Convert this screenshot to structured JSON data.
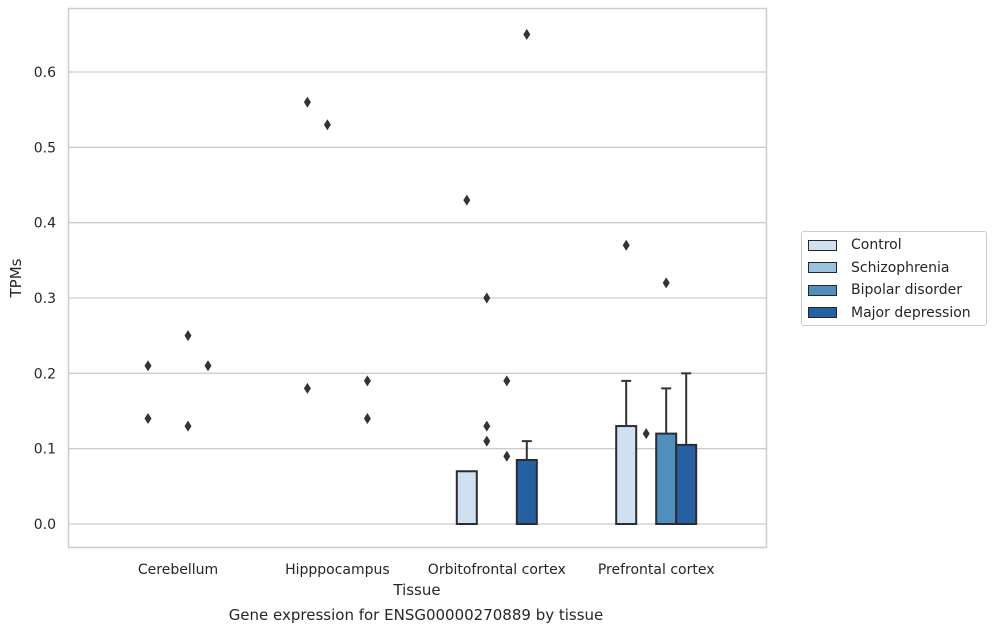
{
  "chart_data": {
    "type": "bar",
    "title": "",
    "xlabel": "Tissue",
    "ylabel": "TPMs",
    "caption": "Gene expression for ENSG00000270889 by tissue",
    "ylim": [
      -0.032,
      0.684
    ],
    "yticks": [
      "0.0",
      "0.1",
      "0.2",
      "0.3",
      "0.4",
      "0.5",
      "0.6"
    ],
    "grid": "horizontal",
    "legend_position": "right",
    "categories": [
      "Cerebellum",
      "Hipppocampus",
      "Orbitofrontal cortex",
      "Prefrontal cortex"
    ],
    "series": [
      {
        "name": "Control",
        "color": "#cfe0f0",
        "values": [
          0,
          0,
          0.07,
          0.13
        ],
        "error_upper": [
          null,
          null,
          null,
          0.19
        ],
        "outliers": [
          [
            0.21,
            0.14
          ],
          [
            0.56,
            0.18
          ],
          [
            0.43
          ],
          [
            0.37
          ]
        ]
      },
      {
        "name": "Schizophrenia",
        "color": "#99c2dd",
        "values": [
          0,
          0,
          0,
          0
        ],
        "error_upper": [
          null,
          null,
          null,
          null
        ],
        "outliers": [
          [],
          [
            0.53
          ],
          [
            0.3,
            0.13,
            0.11
          ],
          [
            0.12
          ]
        ]
      },
      {
        "name": "Bipolar disorder",
        "color": "#4f8fbd",
        "values": [
          0,
          0,
          0,
          0.12
        ],
        "error_upper": [
          null,
          null,
          null,
          0.18
        ],
        "outliers": [
          [
            0.25,
            0.13
          ],
          [],
          [
            0.19,
            0.09
          ],
          [
            0.32
          ]
        ]
      },
      {
        "name": "Major depression",
        "color": "#2561a2",
        "values": [
          0,
          0,
          0.085,
          0.105
        ],
        "error_upper": [
          null,
          null,
          0.11,
          0.2
        ],
        "outliers": [
          [
            0.21
          ],
          [
            0.19,
            0.14
          ],
          [
            0.65
          ],
          []
        ]
      }
    ]
  }
}
